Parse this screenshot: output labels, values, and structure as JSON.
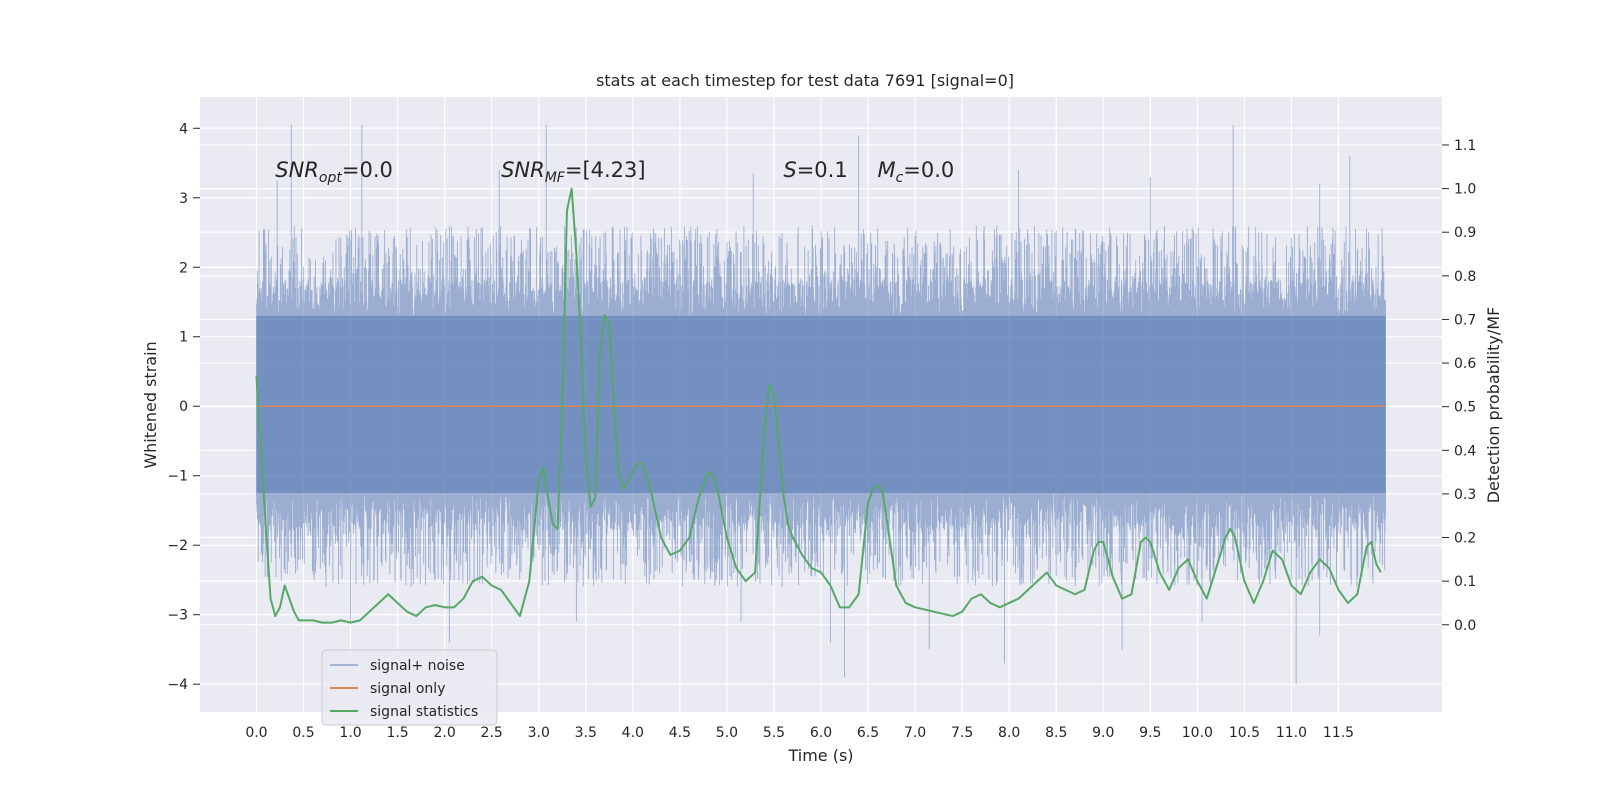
{
  "chart_data": {
    "type": "line",
    "title": "stats at each timestep for test data 7691 [signal=0]",
    "xlabel": "Time (s)",
    "ylabel": "Whitened strain",
    "ylabel_right": "Detection probability/MF",
    "xlim": [
      -0.6,
      12.6
    ],
    "ylim": [
      -4.4,
      4.45
    ],
    "ylim_right": [
      -0.2,
      1.21
    ],
    "x_ticks": [
      0.0,
      0.5,
      1.0,
      1.5,
      2.0,
      2.5,
      3.0,
      3.5,
      4.0,
      4.5,
      5.0,
      5.5,
      6.0,
      6.5,
      7.0,
      7.5,
      8.0,
      8.5,
      9.0,
      9.5,
      10.0,
      10.5,
      11.0,
      11.5
    ],
    "x_tick_labels": [
      "0.0",
      "0.5",
      "1.0",
      "1.5",
      "2.0",
      "2.5",
      "3.0",
      "3.5",
      "4.0",
      "4.5",
      "5.0",
      "5.5",
      "6.0",
      "6.5",
      "7.0",
      "7.5",
      "8.0",
      "8.5",
      "9.0",
      "9.5",
      "10.0",
      "10.5",
      "11.0",
      "11.5"
    ],
    "y_ticks": [
      4,
      3,
      2,
      1,
      0,
      -1,
      -2,
      -3,
      -4
    ],
    "y_tick_labels": [
      "4",
      "3",
      "2",
      "1",
      "0",
      "−1",
      "−2",
      "−3",
      "−4"
    ],
    "y_right_ticks": [
      1.1,
      1.0,
      0.9,
      0.8,
      0.7,
      0.6,
      0.5,
      0.4,
      0.3,
      0.2,
      0.1,
      0.0
    ],
    "y_right_tick_labels": [
      "1.1",
      "1.0",
      "0.9",
      "0.8",
      "0.7",
      "0.6",
      "0.5",
      "0.4",
      "0.3",
      "0.2",
      "0.1",
      "0.0"
    ],
    "grid": true,
    "legend_position": "bottom-left",
    "annotations": [
      {
        "text": "SNR_opt=0.0",
        "x": 0.2,
        "y": 3.3
      },
      {
        "text": "SNR_MF=[4.23]",
        "x": 2.6,
        "y": 3.3
      },
      {
        "text": "S=0.1",
        "x": 5.6,
        "y": 3.3
      },
      {
        "text": "M_c=0.0",
        "x": 6.6,
        "y": 3.3
      }
    ],
    "series": [
      {
        "name": "signal+ noise",
        "axis": "left",
        "color": "#4c72b0",
        "kind": "noise",
        "x_range": [
          0.0,
          12.0
        ],
        "band_upper": 1.3,
        "band_lower": -1.25,
        "typical_max": 2.6,
        "typical_min": -2.6,
        "peaks": [
          {
            "x": 0.37,
            "y": 4.05
          },
          {
            "x": 1.12,
            "y": 4.05
          },
          {
            "x": 3.08,
            "y": 4.05
          },
          {
            "x": 6.4,
            "y": 3.9
          },
          {
            "x": 10.38,
            "y": 4.05
          },
          {
            "x": 11.62,
            "y": 3.6
          },
          {
            "x": 0.22,
            "y": 3.25
          },
          {
            "x": 2.58,
            "y": 3.4
          },
          {
            "x": 5.28,
            "y": 3.35
          },
          {
            "x": 8.1,
            "y": 3.4
          },
          {
            "x": 9.5,
            "y": 3.3
          },
          {
            "x": 11.3,
            "y": 3.2
          },
          {
            "x": 6.25,
            "y": -3.9
          },
          {
            "x": 11.05,
            "y": -4.0
          },
          {
            "x": 1.0,
            "y": -3.1
          },
          {
            "x": 2.05,
            "y": -3.4
          },
          {
            "x": 3.4,
            "y": -3.1
          },
          {
            "x": 5.15,
            "y": -3.1
          },
          {
            "x": 6.1,
            "y": -3.4
          },
          {
            "x": 7.15,
            "y": -3.5
          },
          {
            "x": 7.95,
            "y": -3.7
          },
          {
            "x": 9.2,
            "y": -3.5
          },
          {
            "x": 10.05,
            "y": -3.1
          },
          {
            "x": 11.3,
            "y": -3.3
          }
        ]
      },
      {
        "name": "signal only",
        "axis": "left",
        "color": "#dd8452",
        "x": [
          0.0,
          12.0
        ],
        "y": [
          0.0,
          0.0
        ]
      },
      {
        "name": "signal statistics",
        "axis": "right",
        "color": "#55a868",
        "x": [
          0.0,
          0.05,
          0.1,
          0.15,
          0.2,
          0.25,
          0.3,
          0.35,
          0.4,
          0.45,
          0.5,
          0.6,
          0.7,
          0.8,
          0.9,
          1.0,
          1.1,
          1.2,
          1.3,
          1.4,
          1.5,
          1.6,
          1.7,
          1.8,
          1.9,
          2.0,
          2.1,
          2.2,
          2.3,
          2.4,
          2.5,
          2.6,
          2.7,
          2.8,
          2.9,
          3.0,
          3.05,
          3.1,
          3.15,
          3.2,
          3.25,
          3.3,
          3.35,
          3.4,
          3.45,
          3.5,
          3.55,
          3.6,
          3.65,
          3.7,
          3.75,
          3.8,
          3.85,
          3.9,
          3.95,
          4.0,
          4.05,
          4.1,
          4.15,
          4.2,
          4.3,
          4.4,
          4.5,
          4.6,
          4.7,
          4.8,
          4.85,
          4.9,
          5.0,
          5.1,
          5.2,
          5.3,
          5.4,
          5.45,
          5.5,
          5.55,
          5.6,
          5.65,
          5.7,
          5.8,
          5.9,
          6.0,
          6.1,
          6.2,
          6.3,
          6.4,
          6.5,
          6.55,
          6.6,
          6.65,
          6.7,
          6.8,
          6.9,
          7.0,
          7.2,
          7.4,
          7.5,
          7.6,
          7.7,
          7.8,
          7.9,
          8.0,
          8.1,
          8.2,
          8.3,
          8.4,
          8.5,
          8.6,
          8.7,
          8.8,
          8.9,
          8.95,
          9.0,
          9.1,
          9.2,
          9.3,
          9.4,
          9.45,
          9.5,
          9.6,
          9.7,
          9.8,
          9.9,
          10.0,
          10.1,
          10.2,
          10.3,
          10.35,
          10.4,
          10.5,
          10.6,
          10.7,
          10.8,
          10.9,
          11.0,
          11.1,
          11.2,
          11.3,
          11.4,
          11.5,
          11.6,
          11.7,
          11.8,
          11.85,
          11.9,
          11.95
        ],
        "y": [
          0.57,
          0.4,
          0.22,
          0.06,
          0.02,
          0.04,
          0.09,
          0.06,
          0.03,
          0.01,
          0.01,
          0.01,
          0.005,
          0.005,
          0.01,
          0.005,
          0.01,
          0.03,
          0.05,
          0.07,
          0.05,
          0.03,
          0.02,
          0.04,
          0.045,
          0.04,
          0.04,
          0.06,
          0.1,
          0.11,
          0.09,
          0.08,
          0.05,
          0.02,
          0.1,
          0.33,
          0.36,
          0.29,
          0.23,
          0.22,
          0.5,
          0.95,
          1.0,
          0.85,
          0.65,
          0.38,
          0.27,
          0.29,
          0.62,
          0.71,
          0.69,
          0.5,
          0.35,
          0.31,
          0.33,
          0.35,
          0.37,
          0.37,
          0.34,
          0.3,
          0.2,
          0.16,
          0.17,
          0.2,
          0.29,
          0.35,
          0.34,
          0.31,
          0.2,
          0.13,
          0.1,
          0.12,
          0.45,
          0.55,
          0.53,
          0.42,
          0.3,
          0.23,
          0.2,
          0.16,
          0.13,
          0.12,
          0.09,
          0.04,
          0.04,
          0.07,
          0.28,
          0.31,
          0.32,
          0.31,
          0.24,
          0.09,
          0.05,
          0.04,
          0.03,
          0.02,
          0.03,
          0.06,
          0.07,
          0.05,
          0.04,
          0.05,
          0.06,
          0.08,
          0.1,
          0.12,
          0.09,
          0.08,
          0.07,
          0.08,
          0.17,
          0.19,
          0.19,
          0.11,
          0.06,
          0.07,
          0.19,
          0.2,
          0.19,
          0.12,
          0.08,
          0.13,
          0.15,
          0.1,
          0.06,
          0.13,
          0.2,
          0.22,
          0.2,
          0.1,
          0.05,
          0.1,
          0.17,
          0.15,
          0.09,
          0.07,
          0.12,
          0.15,
          0.13,
          0.08,
          0.05,
          0.07,
          0.18,
          0.19,
          0.14,
          0.12
        ]
      }
    ]
  }
}
